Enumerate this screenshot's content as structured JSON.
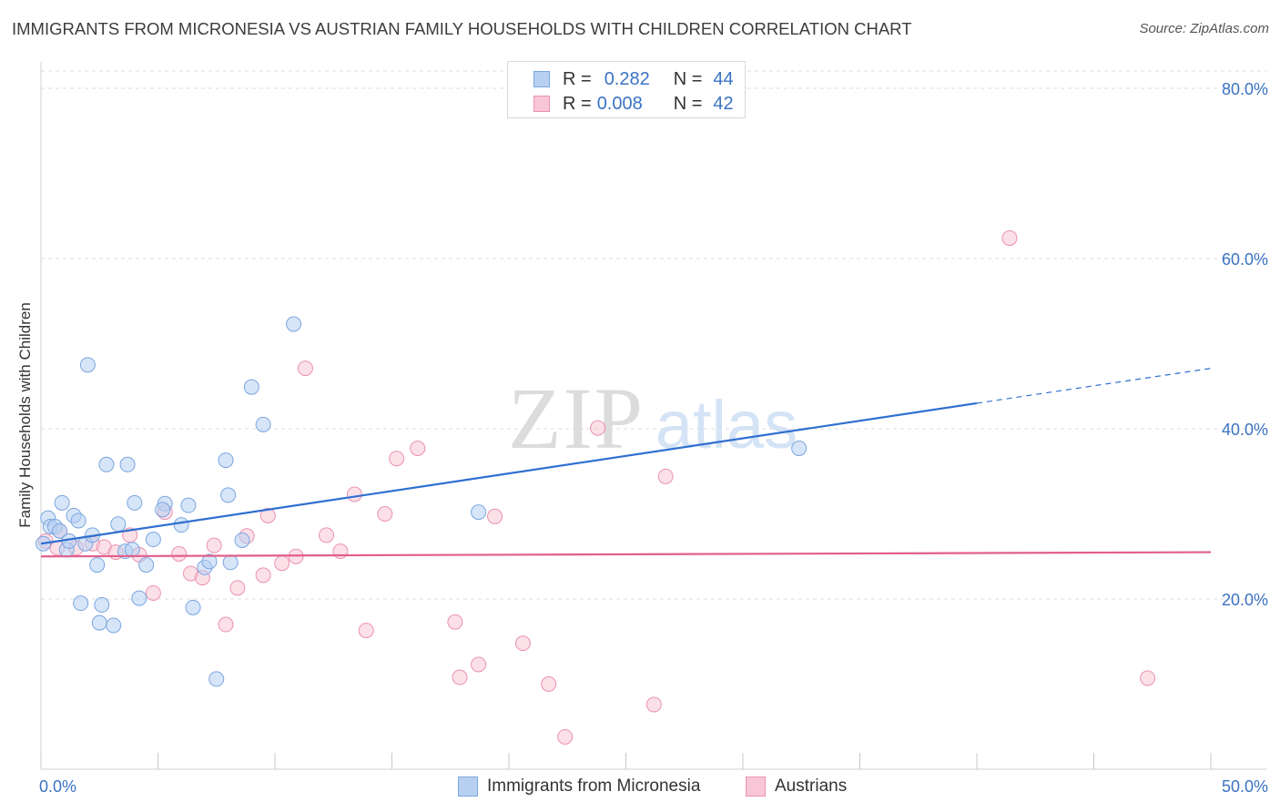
{
  "title": "IMMIGRANTS FROM MICRONESIA VS AUSTRIAN FAMILY HOUSEHOLDS WITH CHILDREN CORRELATION CHART",
  "source": "Source: ZipAtlas.com",
  "watermark": {
    "zip": "ZIP",
    "atlas": "atlas"
  },
  "legend": {
    "r_label": "R =",
    "n_label": "N =",
    "series1": {
      "r": "0.282",
      "n": "44"
    },
    "series2": {
      "r": "0.008",
      "n": "42"
    }
  },
  "bottom_legend": {
    "series1": "Immigrants from Micronesia",
    "series2": "Austrians"
  },
  "colors": {
    "blue_fill": "#b7d0f2",
    "blue_stroke": "#7aa6e0",
    "blue_line": "#2f6fd0",
    "pink_fill": "#f8c6d6",
    "pink_stroke": "#eb92b0",
    "pink_line": "#e25f8b",
    "axis_text": "#3b73c4",
    "grid": "#dcdcdc"
  },
  "chart_data": {
    "type": "scatter",
    "title": "IMMIGRANTS FROM MICRONESIA VS AUSTRIAN FAMILY HOUSEHOLDS WITH CHILDREN CORRELATION CHART",
    "xlabel": "",
    "ylabel": "Family Households with Children",
    "xlim": [
      0,
      50
    ],
    "ylim": [
      0,
      82
    ],
    "x_tick_labels": [
      "0.0%",
      "50.0%"
    ],
    "y_ticks": [
      20,
      40,
      60,
      80
    ],
    "y_tick_labels": [
      "20.0%",
      "40.0%",
      "60.0%",
      "80.0%"
    ],
    "grid": true,
    "series": [
      {
        "name": "Immigrants from Micronesia",
        "color": "blue",
        "points": [
          [
            0.1,
            26.5
          ],
          [
            0.3,
            29.5
          ],
          [
            0.4,
            28.5
          ],
          [
            0.6,
            28.5
          ],
          [
            0.8,
            28
          ],
          [
            0.9,
            31.3
          ],
          [
            1.1,
            25.8
          ],
          [
            1.2,
            26.8
          ],
          [
            1.4,
            29.8
          ],
          [
            1.6,
            29.2
          ],
          [
            1.7,
            19.5
          ],
          [
            1.9,
            26.5
          ],
          [
            2.0,
            47.5
          ],
          [
            2.2,
            27.5
          ],
          [
            2.4,
            24
          ],
          [
            2.5,
            17.2
          ],
          [
            2.6,
            19.3
          ],
          [
            2.8,
            35.8
          ],
          [
            3.1,
            16.9
          ],
          [
            3.3,
            28.8
          ],
          [
            3.6,
            25.6
          ],
          [
            3.7,
            35.8
          ],
          [
            3.9,
            25.8
          ],
          [
            4.0,
            31.3
          ],
          [
            4.2,
            20.1
          ],
          [
            4.5,
            24
          ],
          [
            4.8,
            27
          ],
          [
            5.3,
            31.2
          ],
          [
            5.2,
            30.5
          ],
          [
            6.0,
            28.7
          ],
          [
            6.3,
            31
          ],
          [
            6.5,
            19
          ],
          [
            7.0,
            23.7
          ],
          [
            7.2,
            24.4
          ],
          [
            7.5,
            10.6
          ],
          [
            7.9,
            36.3
          ],
          [
            8.0,
            32.2
          ],
          [
            8.1,
            24.3
          ],
          [
            8.6,
            26.9
          ],
          [
            9.0,
            44.9
          ],
          [
            9.5,
            40.5
          ],
          [
            10.8,
            52.3
          ],
          [
            18.7,
            30.2
          ],
          [
            32.4,
            37.7
          ]
        ],
        "trend": {
          "x0": 0,
          "y0": 26.5,
          "x1": 40,
          "y1": 43.0,
          "dash_to_x": 50,
          "dash_to_y": 47.1
        }
      },
      {
        "name": "Austrians",
        "color": "pink",
        "points": [
          [
            0.2,
            26.8
          ],
          [
            0.7,
            26
          ],
          [
            0.8,
            28
          ],
          [
            1.5,
            26
          ],
          [
            2.2,
            26.5
          ],
          [
            2.7,
            26.1
          ],
          [
            3.2,
            25.5
          ],
          [
            3.8,
            27.5
          ],
          [
            4.2,
            25.2
          ],
          [
            4.8,
            20.7
          ],
          [
            5.3,
            30.2
          ],
          [
            5.9,
            25.3
          ],
          [
            6.4,
            23
          ],
          [
            6.9,
            22.5
          ],
          [
            7.4,
            26.3
          ],
          [
            7.9,
            17
          ],
          [
            8.4,
            21.3
          ],
          [
            8.8,
            27.4
          ],
          [
            9.5,
            22.8
          ],
          [
            9.7,
            29.8
          ],
          [
            10.3,
            24.2
          ],
          [
            10.9,
            25
          ],
          [
            11.3,
            47.1
          ],
          [
            12.2,
            27.5
          ],
          [
            12.8,
            25.6
          ],
          [
            13.4,
            32.3
          ],
          [
            13.9,
            16.3
          ],
          [
            14.7,
            30
          ],
          [
            15.2,
            36.5
          ],
          [
            16.1,
            37.7
          ],
          [
            17.7,
            17.3
          ],
          [
            17.9,
            10.8
          ],
          [
            18.7,
            12.3
          ],
          [
            19.4,
            29.7
          ],
          [
            20.6,
            14.8
          ],
          [
            21.7,
            10
          ],
          [
            22.4,
            3.8
          ],
          [
            23.8,
            40.1
          ],
          [
            26.2,
            7.6
          ],
          [
            26.7,
            34.4
          ],
          [
            41.4,
            62.4
          ],
          [
            47.3,
            10.7
          ]
        ],
        "trend": {
          "x0": 0,
          "y0": 25.0,
          "x1": 50,
          "y1": 25.5
        }
      }
    ]
  }
}
